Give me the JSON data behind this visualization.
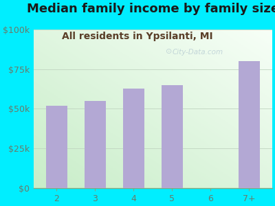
{
  "title": "Median family income by family size",
  "subtitle": "All residents in Ypsilanti, MI",
  "categories": [
    "2",
    "3",
    "4",
    "5",
    "6",
    "7+"
  ],
  "values": [
    52000,
    55000,
    63000,
    65000,
    0,
    80000
  ],
  "bar_color": "#b3a8d4",
  "background_color": "#00eeff",
  "title_color": "#1a1a1a",
  "subtitle_color": "#5a3e28",
  "tick_color": "#6a7a6a",
  "ylim": [
    0,
    100000
  ],
  "yticks": [
    0,
    25000,
    50000,
    75000,
    100000
  ],
  "ytick_labels": [
    "$0",
    "$25k",
    "$50k",
    "$75k",
    "$100k"
  ],
  "watermark": "City-Data.com",
  "title_fontsize": 13,
  "subtitle_fontsize": 10
}
